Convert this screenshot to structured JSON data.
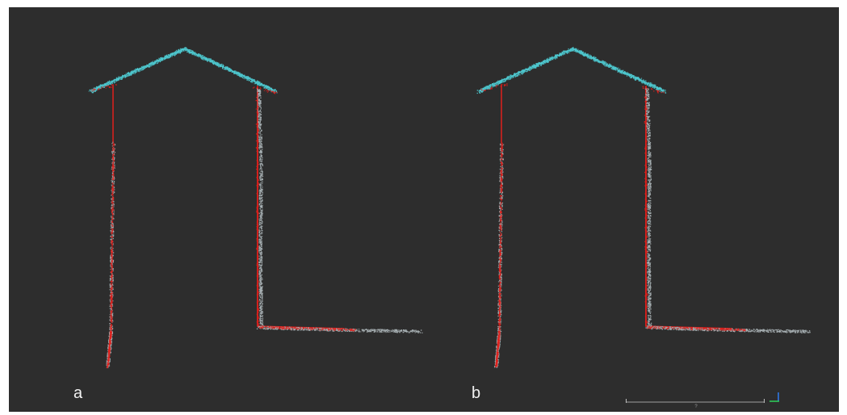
{
  "viewport": {
    "background": "#2d2d2d",
    "panels": [
      {
        "label": "a",
        "point_colors": {
          "structure": "#e0201c",
          "roof": "#4ec8cf",
          "noise": "#a9b2b5"
        }
      },
      {
        "label": "b",
        "point_colors": {
          "structure": "#e0201c",
          "roof": "#4ec8cf",
          "noise": "#a9b2b5"
        }
      }
    ],
    "scale_bar": {
      "value": "?"
    },
    "axis_icon": {
      "x_color": "#2fd15a",
      "y_color": "#2f7df0"
    }
  }
}
